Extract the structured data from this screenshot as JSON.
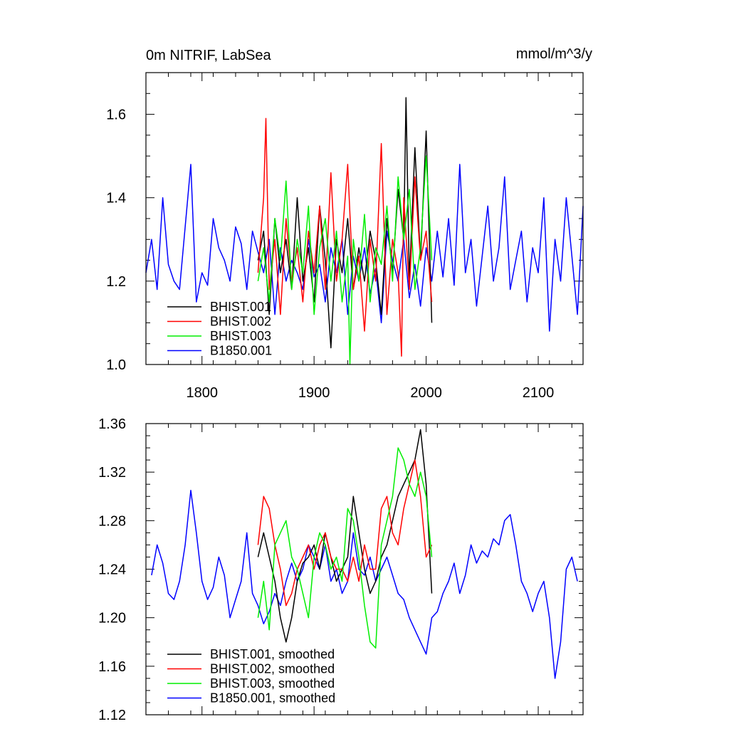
{
  "panel_top": {
    "title_left": "0m NITRIF, LabSea",
    "title_right": "mmol/m^3/y"
  },
  "legend_top": [
    "BHIST.001",
    "BHIST.002",
    "BHIST.003",
    "B1850.001"
  ],
  "legend_bottom": [
    "BHIST.001, smoothed",
    "BHIST.002, smoothed",
    "BHIST.003, smoothed",
    "B1850.001, smoothed"
  ],
  "colors": {
    "BHIST.001": "#000000",
    "BHIST.002": "#ff0000",
    "BHIST.003": "#00ee00",
    "B1850.001": "#0000ff"
  },
  "chart_data": [
    {
      "type": "line",
      "title": "0m NITRIF, LabSea",
      "units": "mmol/m^3/y",
      "xlim": [
        1750,
        2140
      ],
      "ylim": [
        1.0,
        1.7
      ],
      "yticks": [
        1.0,
        1.2,
        1.4,
        1.6
      ],
      "ytick_labels": [
        "1.0",
        "1.2",
        "1.4",
        "1.6"
      ],
      "xticks": [
        1800,
        1900,
        2000,
        2100
      ],
      "xtick_labels": [
        "1800",
        "1900",
        "2000",
        "2100"
      ],
      "legend_position": "bottom-left",
      "series": [
        {
          "name": "B1850.001",
          "color": "#0000ff",
          "x": [
            1750,
            1755,
            1760,
            1765,
            1770,
            1775,
            1780,
            1785,
            1790,
            1795,
            1800,
            1805,
            1810,
            1815,
            1820,
            1825,
            1830,
            1835,
            1840,
            1845,
            1850,
            1855,
            1860,
            1865,
            1870,
            1875,
            1880,
            1885,
            1890,
            1895,
            1900,
            1905,
            1910,
            1915,
            1920,
            1925,
            1930,
            1935,
            1940,
            1945,
            1950,
            1955,
            1960,
            1965,
            1970,
            1975,
            1980,
            1985,
            1990,
            1995,
            2000,
            2005,
            2010,
            2015,
            2020,
            2025,
            2030,
            2035,
            2040,
            2045,
            2050,
            2055,
            2060,
            2065,
            2070,
            2075,
            2080,
            2085,
            2090,
            2095,
            2100,
            2105,
            2110,
            2115,
            2120,
            2125,
            2130,
            2135,
            2140
          ],
          "y": [
            1.22,
            1.3,
            1.18,
            1.4,
            1.24,
            1.2,
            1.18,
            1.33,
            1.48,
            1.15,
            1.22,
            1.19,
            1.35,
            1.28,
            1.25,
            1.2,
            1.33,
            1.29,
            1.18,
            1.32,
            1.27,
            1.22,
            1.3,
            1.12,
            1.28,
            1.2,
            1.25,
            1.22,
            1.18,
            1.3,
            1.21,
            1.24,
            1.15,
            1.28,
            1.22,
            1.3,
            1.12,
            1.26,
            1.2,
            1.28,
            1.17,
            1.23,
            1.1,
            1.32,
            1.25,
            1.2,
            1.3,
            1.16,
            1.24,
            1.14,
            1.28,
            1.2,
            1.32,
            1.21,
            1.35,
            1.19,
            1.48,
            1.22,
            1.3,
            1.14,
            1.26,
            1.38,
            1.2,
            1.28,
            1.45,
            1.18,
            1.25,
            1.32,
            1.15,
            1.28,
            1.22,
            1.4,
            1.08,
            1.3,
            1.2,
            1.4,
            1.26,
            1.12,
            1.38
          ]
        },
        {
          "name": "BHIST.001",
          "color": "#000000",
          "x": [
            1850,
            1855,
            1860,
            1865,
            1870,
            1875,
            1880,
            1885,
            1890,
            1895,
            1900,
            1905,
            1910,
            1915,
            1920,
            1925,
            1930,
            1935,
            1940,
            1945,
            1950,
            1955,
            1960,
            1965,
            1970,
            1975,
            1980,
            1982,
            1985,
            1990,
            1995,
            2000,
            2005
          ],
          "y": [
            1.25,
            1.32,
            1.12,
            1.35,
            1.22,
            1.3,
            1.18,
            1.4,
            1.2,
            1.28,
            1.15,
            1.38,
            1.25,
            1.04,
            1.3,
            1.22,
            1.35,
            1.18,
            1.28,
            1.2,
            1.32,
            1.25,
            1.12,
            1.35,
            1.22,
            1.42,
            1.3,
            1.64,
            1.2,
            1.52,
            1.25,
            1.56,
            1.1
          ]
        },
        {
          "name": "BHIST.002",
          "color": "#ff0000",
          "x": [
            1850,
            1855,
            1857,
            1860,
            1865,
            1870,
            1875,
            1880,
            1885,
            1890,
            1895,
            1900,
            1905,
            1910,
            1915,
            1920,
            1925,
            1930,
            1935,
            1940,
            1945,
            1950,
            1955,
            1960,
            1965,
            1970,
            1975,
            1978,
            1980,
            1985,
            1990,
            1995,
            2000,
            2005
          ],
          "y": [
            1.22,
            1.4,
            1.59,
            1.18,
            1.3,
            1.12,
            1.35,
            1.2,
            1.28,
            1.15,
            1.32,
            1.22,
            1.38,
            1.18,
            1.46,
            1.2,
            1.3,
            1.48,
            1.18,
            1.26,
            1.08,
            1.3,
            1.2,
            1.53,
            1.12,
            1.3,
            1.22,
            1.02,
            1.4,
            1.18,
            1.45,
            1.25,
            1.32,
            1.15
          ]
        },
        {
          "name": "BHIST.003",
          "color": "#00ee00",
          "x": [
            1850,
            1855,
            1860,
            1865,
            1870,
            1875,
            1880,
            1885,
            1890,
            1895,
            1900,
            1905,
            1910,
            1915,
            1920,
            1925,
            1930,
            1932,
            1935,
            1940,
            1945,
            1950,
            1955,
            1960,
            1965,
            1970,
            1975,
            1980,
            1985,
            1990,
            1995,
            2000,
            2005
          ],
          "y": [
            1.2,
            1.28,
            1.15,
            1.35,
            1.25,
            1.44,
            1.18,
            1.3,
            1.22,
            1.38,
            1.12,
            1.28,
            1.35,
            1.2,
            1.32,
            1.15,
            1.26,
            1.0,
            1.3,
            1.2,
            1.36,
            1.15,
            1.28,
            1.24,
            1.38,
            1.2,
            1.45,
            1.3,
            1.42,
            1.18,
            1.28,
            1.5,
            1.25
          ]
        }
      ]
    },
    {
      "type": "line",
      "xlim": [
        1750,
        2140
      ],
      "ylim": [
        1.12,
        1.36
      ],
      "yticks": [
        1.12,
        1.16,
        1.2,
        1.24,
        1.28,
        1.32,
        1.36
      ],
      "ytick_labels": [
        "1.12",
        "1.16",
        "1.20",
        "1.24",
        "1.28",
        "1.32",
        "1.36"
      ],
      "xticks": [
        1800,
        1900,
        2000,
        2100
      ],
      "legend_position": "bottom-left",
      "series": [
        {
          "name": "B1850.001, smoothed",
          "color": "#0000ff",
          "x": [
            1755,
            1760,
            1765,
            1770,
            1775,
            1780,
            1785,
            1790,
            1795,
            1800,
            1805,
            1810,
            1815,
            1820,
            1825,
            1830,
            1835,
            1840,
            1845,
            1850,
            1855,
            1860,
            1865,
            1870,
            1875,
            1880,
            1885,
            1890,
            1895,
            1900,
            1905,
            1910,
            1915,
            1920,
            1925,
            1930,
            1935,
            1940,
            1945,
            1950,
            1955,
            1960,
            1965,
            1970,
            1975,
            1980,
            1985,
            1990,
            1995,
            2000,
            2005,
            2010,
            2015,
            2020,
            2025,
            2030,
            2035,
            2040,
            2045,
            2050,
            2055,
            2060,
            2065,
            2070,
            2075,
            2080,
            2085,
            2090,
            2095,
            2100,
            2105,
            2110,
            2115,
            2120,
            2125,
            2130,
            2135
          ],
          "y": [
            1.235,
            1.26,
            1.245,
            1.22,
            1.215,
            1.23,
            1.26,
            1.305,
            1.27,
            1.23,
            1.215,
            1.225,
            1.25,
            1.235,
            1.2,
            1.215,
            1.23,
            1.27,
            1.22,
            1.21,
            1.195,
            1.205,
            1.22,
            1.21,
            1.23,
            1.245,
            1.23,
            1.24,
            1.26,
            1.25,
            1.24,
            1.26,
            1.23,
            1.24,
            1.22,
            1.23,
            1.27,
            1.24,
            1.235,
            1.25,
            1.23,
            1.24,
            1.25,
            1.235,
            1.22,
            1.215,
            1.2,
            1.19,
            1.18,
            1.17,
            1.2,
            1.205,
            1.22,
            1.23,
            1.245,
            1.22,
            1.235,
            1.26,
            1.245,
            1.255,
            1.25,
            1.265,
            1.26,
            1.28,
            1.285,
            1.26,
            1.23,
            1.22,
            1.205,
            1.22,
            1.23,
            1.2,
            1.15,
            1.18,
            1.24,
            1.25,
            1.23
          ]
        },
        {
          "name": "BHIST.001, smoothed",
          "color": "#000000",
          "x": [
            1850,
            1855,
            1860,
            1865,
            1870,
            1875,
            1880,
            1885,
            1890,
            1895,
            1900,
            1905,
            1910,
            1915,
            1920,
            1925,
            1930,
            1935,
            1940,
            1945,
            1950,
            1955,
            1960,
            1965,
            1970,
            1975,
            1980,
            1985,
            1990,
            1995,
            2000,
            2005
          ],
          "y": [
            1.25,
            1.27,
            1.25,
            1.23,
            1.2,
            1.18,
            1.2,
            1.23,
            1.245,
            1.25,
            1.26,
            1.24,
            1.27,
            1.25,
            1.23,
            1.24,
            1.25,
            1.3,
            1.27,
            1.24,
            1.22,
            1.23,
            1.25,
            1.26,
            1.28,
            1.3,
            1.31,
            1.32,
            1.33,
            1.355,
            1.31,
            1.22
          ]
        },
        {
          "name": "BHIST.002, smoothed",
          "color": "#ff0000",
          "x": [
            1850,
            1855,
            1860,
            1865,
            1870,
            1875,
            1880,
            1885,
            1890,
            1895,
            1900,
            1905,
            1910,
            1915,
            1920,
            1925,
            1930,
            1935,
            1940,
            1945,
            1950,
            1955,
            1960,
            1965,
            1970,
            1975,
            1980,
            1985,
            1990,
            1995,
            2000,
            2005
          ],
          "y": [
            1.26,
            1.3,
            1.29,
            1.26,
            1.24,
            1.21,
            1.22,
            1.24,
            1.25,
            1.26,
            1.24,
            1.26,
            1.27,
            1.25,
            1.24,
            1.24,
            1.23,
            1.25,
            1.23,
            1.26,
            1.24,
            1.24,
            1.29,
            1.3,
            1.27,
            1.26,
            1.29,
            1.31,
            1.33,
            1.3,
            1.25,
            1.26
          ]
        },
        {
          "name": "BHIST.003, smoothed",
          "color": "#00ee00",
          "x": [
            1850,
            1855,
            1860,
            1865,
            1870,
            1875,
            1880,
            1885,
            1890,
            1895,
            1900,
            1905,
            1910,
            1915,
            1920,
            1925,
            1930,
            1935,
            1940,
            1945,
            1950,
            1955,
            1960,
            1965,
            1970,
            1975,
            1980,
            1985,
            1990,
            1995,
            2000,
            2005
          ],
          "y": [
            1.2,
            1.23,
            1.19,
            1.26,
            1.27,
            1.28,
            1.25,
            1.24,
            1.22,
            1.2,
            1.25,
            1.27,
            1.26,
            1.24,
            1.25,
            1.23,
            1.29,
            1.28,
            1.25,
            1.21,
            1.18,
            1.175,
            1.26,
            1.28,
            1.3,
            1.34,
            1.33,
            1.31,
            1.3,
            1.32,
            1.3,
            1.25
          ]
        }
      ]
    }
  ]
}
